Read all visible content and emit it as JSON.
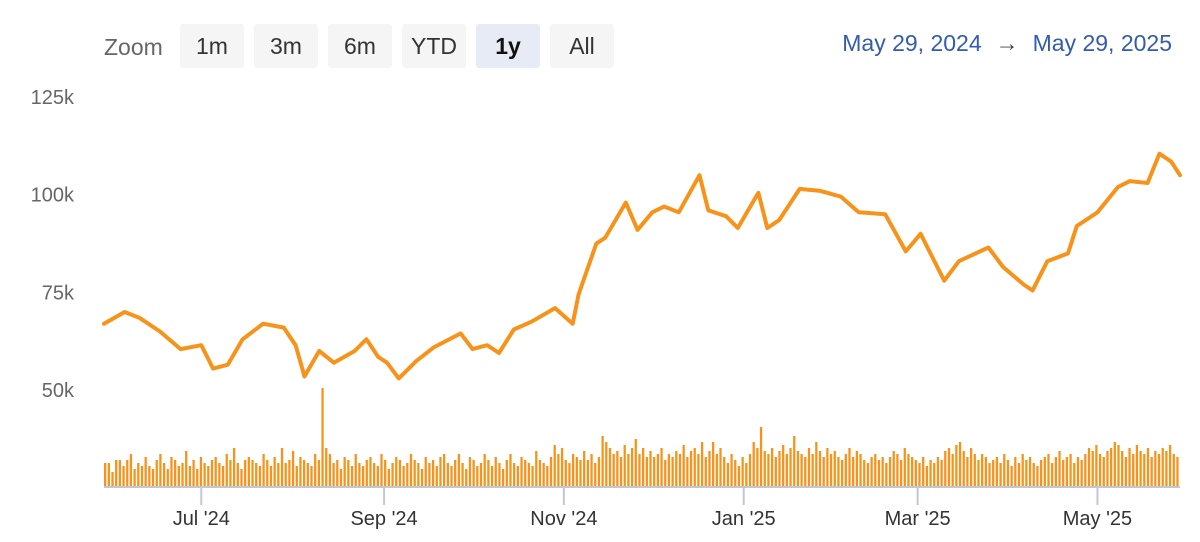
{
  "zoom": {
    "label": "Zoom",
    "buttons": [
      "1m",
      "3m",
      "6m",
      "YTD",
      "1y",
      "All"
    ],
    "active": "1y"
  },
  "range": {
    "from": "May 29, 2024",
    "arrow": "→",
    "to": "May 29, 2025"
  },
  "colors": {
    "line": "#f7931a",
    "volume": "#f7931a",
    "axis": "#c0c8d6",
    "active_button": "#e6ebf5"
  },
  "chart_data": {
    "type": "line",
    "x_range": [
      "2024-05-29",
      "2025-05-29"
    ],
    "y_axis": {
      "ticks": [
        "50k",
        "75k",
        "100k",
        "125k"
      ],
      "tick_values": [
        50000,
        75000,
        100000,
        125000
      ],
      "ylim": [
        44000,
        125000
      ]
    },
    "x_axis": {
      "ticks": [
        "Jul '24",
        "Sep '24",
        "Nov '24",
        "Jan '25",
        "Mar '25",
        "May '25"
      ],
      "tick_dates": [
        "2024-07-01",
        "2024-09-01",
        "2024-11-01",
        "2025-01-01",
        "2025-03-01",
        "2025-05-01"
      ]
    },
    "grid": false,
    "legend": "none",
    "series": [
      {
        "points": [
          [
            "2024-05-29",
            68000
          ],
          [
            "2024-06-05",
            71000
          ],
          [
            "2024-06-10",
            69500
          ],
          [
            "2024-06-17",
            66000
          ],
          [
            "2024-06-24",
            61500
          ],
          [
            "2024-07-01",
            62500
          ],
          [
            "2024-07-05",
            56500
          ],
          [
            "2024-07-10",
            57500
          ],
          [
            "2024-07-15",
            64000
          ],
          [
            "2024-07-22",
            68000
          ],
          [
            "2024-07-29",
            67000
          ],
          [
            "2024-08-02",
            62500
          ],
          [
            "2024-08-05",
            54500
          ],
          [
            "2024-08-10",
            61000
          ],
          [
            "2024-08-15",
            58000
          ],
          [
            "2024-08-22",
            61000
          ],
          [
            "2024-08-26",
            64000
          ],
          [
            "2024-08-30",
            59500
          ],
          [
            "2024-09-02",
            58000
          ],
          [
            "2024-09-06",
            54000
          ],
          [
            "2024-09-12",
            58500
          ],
          [
            "2024-09-18",
            62000
          ],
          [
            "2024-09-27",
            65500
          ],
          [
            "2024-10-01",
            61500
          ],
          [
            "2024-10-06",
            62500
          ],
          [
            "2024-10-10",
            60500
          ],
          [
            "2024-10-15",
            66500
          ],
          [
            "2024-10-21",
            68500
          ],
          [
            "2024-10-29",
            72000
          ],
          [
            "2024-11-04",
            68000
          ],
          [
            "2024-11-06",
            75500
          ],
          [
            "2024-11-12",
            88500
          ],
          [
            "2024-11-15",
            90000
          ],
          [
            "2024-11-22",
            99000
          ],
          [
            "2024-11-26",
            92000
          ],
          [
            "2024-12-01",
            96500
          ],
          [
            "2024-12-05",
            98000
          ],
          [
            "2024-12-10",
            96500
          ],
          [
            "2024-12-17",
            106000
          ],
          [
            "2024-12-20",
            97000
          ],
          [
            "2024-12-26",
            95500
          ],
          [
            "2024-12-30",
            92500
          ],
          [
            "2025-01-06",
            101500
          ],
          [
            "2025-01-09",
            92500
          ],
          [
            "2025-01-13",
            94500
          ],
          [
            "2025-01-20",
            102500
          ],
          [
            "2025-01-27",
            102000
          ],
          [
            "2025-02-03",
            100500
          ],
          [
            "2025-02-09",
            96500
          ],
          [
            "2025-02-18",
            96000
          ],
          [
            "2025-02-25",
            86500
          ],
          [
            "2025-03-02",
            91000
          ],
          [
            "2025-03-10",
            79000
          ],
          [
            "2025-03-15",
            84000
          ],
          [
            "2025-03-25",
            87500
          ],
          [
            "2025-03-30",
            82500
          ],
          [
            "2025-04-06",
            78000
          ],
          [
            "2025-04-09",
            76500
          ],
          [
            "2025-04-14",
            84000
          ],
          [
            "2025-04-21",
            86000
          ],
          [
            "2025-04-24",
            93000
          ],
          [
            "2025-05-01",
            96500
          ],
          [
            "2025-05-08",
            103000
          ],
          [
            "2025-05-12",
            104500
          ],
          [
            "2025-05-18",
            104000
          ],
          [
            "2025-05-22",
            111500
          ],
          [
            "2025-05-26",
            109500
          ],
          [
            "2025-05-29",
            106000
          ]
        ]
      },
      {
        "type": "bar",
        "volume_relative": [
          0.16,
          0.16,
          0.1,
          0.18,
          0.18,
          0.14,
          0.18,
          0.22,
          0.12,
          0.16,
          0.14,
          0.2,
          0.14,
          0.12,
          0.18,
          0.22,
          0.16,
          0.12,
          0.2,
          0.18,
          0.14,
          0.16,
          0.24,
          0.14,
          0.18,
          0.12,
          0.2,
          0.16,
          0.14,
          0.18,
          0.2,
          0.16,
          0.14,
          0.22,
          0.18,
          0.26,
          0.16,
          0.12,
          0.18,
          0.2,
          0.18,
          0.16,
          0.14,
          0.22,
          0.18,
          0.14,
          0.2,
          0.16,
          0.26,
          0.16,
          0.18,
          0.24,
          0.14,
          0.2,
          0.18,
          0.16,
          0.14,
          0.22,
          0.18,
          0.66,
          0.26,
          0.22,
          0.16,
          0.18,
          0.12,
          0.2,
          0.18,
          0.14,
          0.22,
          0.16,
          0.14,
          0.18,
          0.2,
          0.16,
          0.14,
          0.22,
          0.18,
          0.12,
          0.16,
          0.2,
          0.18,
          0.14,
          0.16,
          0.22,
          0.18,
          0.16,
          0.12,
          0.2,
          0.16,
          0.18,
          0.14,
          0.2,
          0.22,
          0.16,
          0.14,
          0.18,
          0.22,
          0.16,
          0.12,
          0.2,
          0.18,
          0.14,
          0.16,
          0.22,
          0.18,
          0.14,
          0.2,
          0.16,
          0.12,
          0.18,
          0.22,
          0.16,
          0.14,
          0.2,
          0.18,
          0.16,
          0.14,
          0.24,
          0.18,
          0.16,
          0.14,
          0.2,
          0.28,
          0.22,
          0.26,
          0.18,
          0.16,
          0.22,
          0.2,
          0.18,
          0.24,
          0.18,
          0.22,
          0.16,
          0.2,
          0.34,
          0.3,
          0.26,
          0.22,
          0.24,
          0.2,
          0.28,
          0.22,
          0.26,
          0.32,
          0.22,
          0.26,
          0.2,
          0.24,
          0.2,
          0.22,
          0.26,
          0.18,
          0.22,
          0.2,
          0.24,
          0.22,
          0.28,
          0.2,
          0.24,
          0.26,
          0.22,
          0.3,
          0.2,
          0.24,
          0.3,
          0.22,
          0.26,
          0.2,
          0.16,
          0.22,
          0.18,
          0.14,
          0.2,
          0.16,
          0.22,
          0.3,
          0.26,
          0.4,
          0.24,
          0.22,
          0.26,
          0.2,
          0.24,
          0.28,
          0.22,
          0.26,
          0.34,
          0.24,
          0.22,
          0.2,
          0.26,
          0.22,
          0.3,
          0.24,
          0.2,
          0.26,
          0.22,
          0.24,
          0.2,
          0.18,
          0.22,
          0.26,
          0.2,
          0.24,
          0.22,
          0.18,
          0.16,
          0.2,
          0.22,
          0.18,
          0.2,
          0.16,
          0.2,
          0.24,
          0.22,
          0.18,
          0.26,
          0.22,
          0.2,
          0.18,
          0.16,
          0.2,
          0.14,
          0.18,
          0.16,
          0.2,
          0.18,
          0.24,
          0.26,
          0.22,
          0.28,
          0.3,
          0.24,
          0.2,
          0.26,
          0.22,
          0.18,
          0.22,
          0.2,
          0.16,
          0.18,
          0.2,
          0.16,
          0.22,
          0.18,
          0.14,
          0.2,
          0.16,
          0.22,
          0.18,
          0.2,
          0.16,
          0.14,
          0.18,
          0.2,
          0.22,
          0.16,
          0.2,
          0.24,
          0.18,
          0.2,
          0.22,
          0.16,
          0.2,
          0.18,
          0.22,
          0.26,
          0.24,
          0.28,
          0.22,
          0.2,
          0.24,
          0.26,
          0.3,
          0.28,
          0.24,
          0.2,
          0.26,
          0.22,
          0.28,
          0.24,
          0.22,
          0.26,
          0.2,
          0.24,
          0.22,
          0.26,
          0.24,
          0.28,
          0.22,
          0.2
        ]
      }
    ]
  }
}
